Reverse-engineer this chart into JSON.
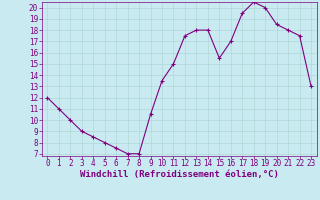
{
  "x": [
    0,
    1,
    2,
    3,
    4,
    5,
    6,
    7,
    8,
    9,
    10,
    11,
    12,
    13,
    14,
    15,
    16,
    17,
    18,
    19,
    20,
    21,
    22,
    23
  ],
  "y": [
    12,
    11,
    10,
    9,
    8.5,
    8,
    7.5,
    7,
    7,
    10.5,
    13.5,
    15,
    17.5,
    18,
    18,
    15.5,
    17,
    19.5,
    20.5,
    20,
    18.5,
    18,
    17.5,
    13
  ],
  "line_color": "#800080",
  "marker": "+",
  "background_color": "#c8eaf0",
  "grid_color": "#b0d8d8",
  "xlabel": "Windchill (Refroidissement éolien,°C)",
  "xlim_min": -0.5,
  "xlim_max": 23.5,
  "ylim_min": 6.8,
  "ylim_max": 20.5,
  "yticks": [
    7,
    8,
    9,
    10,
    11,
    12,
    13,
    14,
    15,
    16,
    17,
    18,
    19,
    20
  ],
  "xticks": [
    0,
    1,
    2,
    3,
    4,
    5,
    6,
    7,
    8,
    9,
    10,
    11,
    12,
    13,
    14,
    15,
    16,
    17,
    18,
    19,
    20,
    21,
    22,
    23
  ],
  "tick_color": "#800080",
  "label_color": "#800080",
  "spine_color": "#800080",
  "label_fontsize": 6.5,
  "tick_fontsize": 5.5
}
